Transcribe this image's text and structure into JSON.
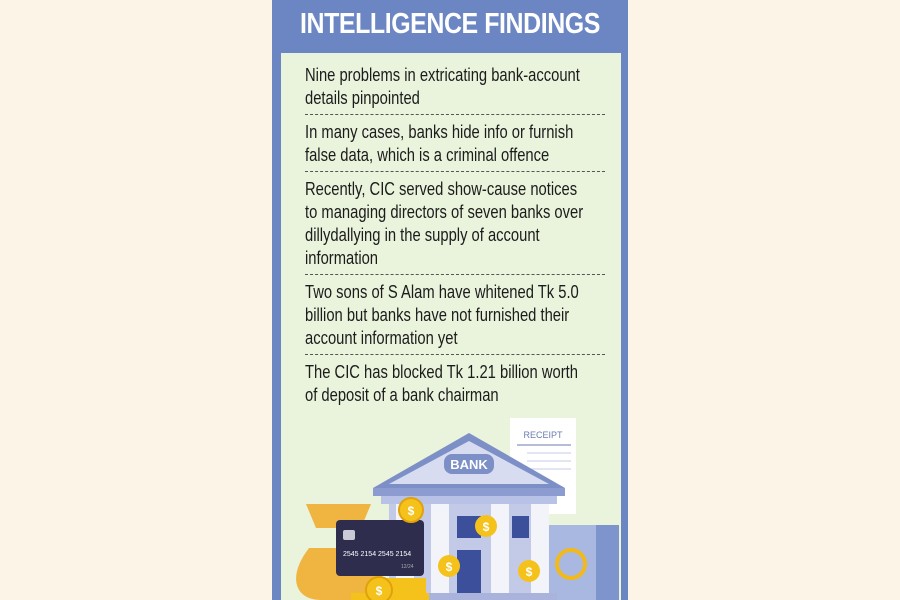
{
  "title": "INTELLIGENCE FINDINGS",
  "findings": [
    [
      "Nine problems in extricating bank-account",
      "details pinpointed"
    ],
    [
      "In many cases, banks hide info or furnish",
      "false data, which is a criminal offence"
    ],
    [
      "Recently, CIC served show-cause notices",
      "to managing directors of seven banks over",
      "dillydallying in the supply of account",
      "information"
    ],
    [
      "Two sons of S Alam have whitened Tk 5.0",
      "billion but banks have not furnished their",
      "account information yet"
    ],
    [
      "The CIC has blocked Tk 1.21 billion worth",
      "of deposit of a bank chairman"
    ]
  ],
  "illustration": {
    "bank_sign": "BANK",
    "receipt_label": "RECEIPT",
    "card_number": "2545 2154 2545 2154",
    "card_expiry": "12/24",
    "coin_symbol": "$"
  },
  "colors": {
    "panel": "#6b86c3",
    "inner": "#eaf3dc",
    "background": "#fdf4e8"
  }
}
